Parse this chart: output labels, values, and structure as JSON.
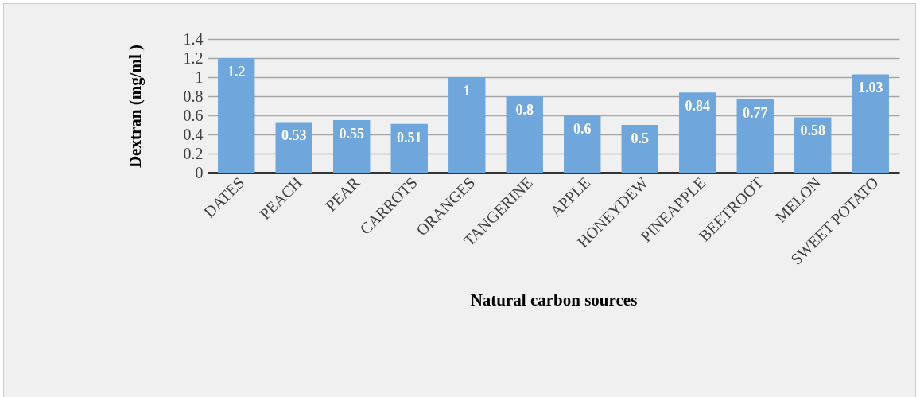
{
  "chart_data": {
    "type": "bar",
    "xlabel": "Natural carbon sources",
    "ylabel": "Dextran  (mg/ml )",
    "categories": [
      "DATES",
      "PEACH",
      "PEAR",
      "CARROTS",
      "ORANGES",
      "TANGERINE",
      "APPLE",
      "HONEYDEW",
      "PINEAPPLE",
      "BEETROOT",
      "MELON",
      "SWEET POTATO"
    ],
    "values": [
      1.2,
      0.53,
      0.55,
      0.51,
      1,
      0.8,
      0.6,
      0.5,
      0.84,
      0.77,
      0.58,
      1.03
    ],
    "color": "#6fa6dc",
    "ylim": [
      0,
      1.4
    ],
    "yticks": [
      0,
      0.2,
      0.4,
      0.6,
      0.8,
      1,
      1.2,
      1.4
    ],
    "grid": "y",
    "data_labels": true
  }
}
